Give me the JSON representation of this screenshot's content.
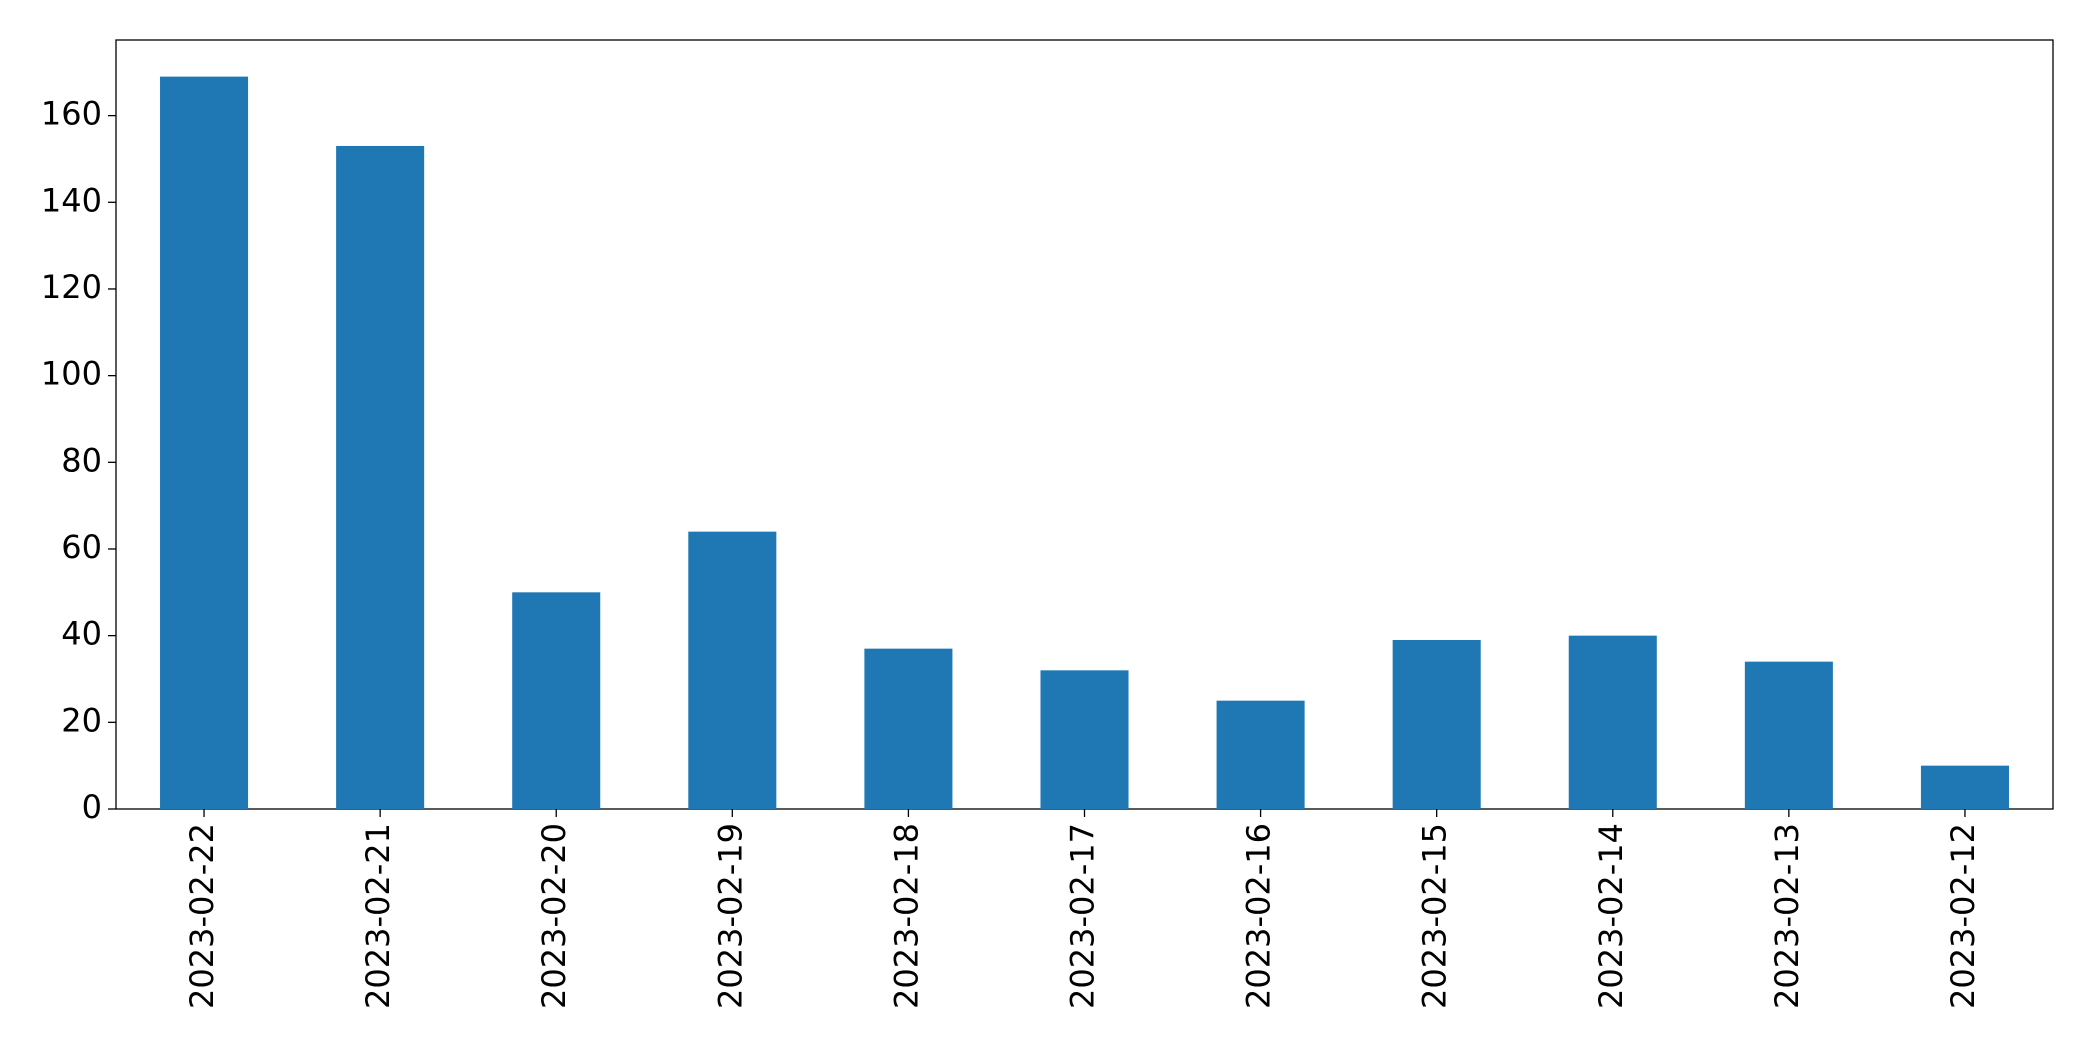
{
  "chart_data": {
    "type": "bar",
    "categories": [
      "2023-02-22",
      "2023-02-21",
      "2023-02-20",
      "2023-02-19",
      "2023-02-18",
      "2023-02-17",
      "2023-02-16",
      "2023-02-15",
      "2023-02-14",
      "2023-02-13",
      "2023-02-12"
    ],
    "values": [
      169,
      153,
      50,
      64,
      37,
      32,
      25,
      39,
      40,
      34,
      10
    ],
    "color": "#1f77b4",
    "ylim": [
      0,
      177.45
    ],
    "yticks": [
      0,
      20,
      40,
      60,
      80,
      100,
      120,
      140,
      160
    ],
    "grid": false
  }
}
